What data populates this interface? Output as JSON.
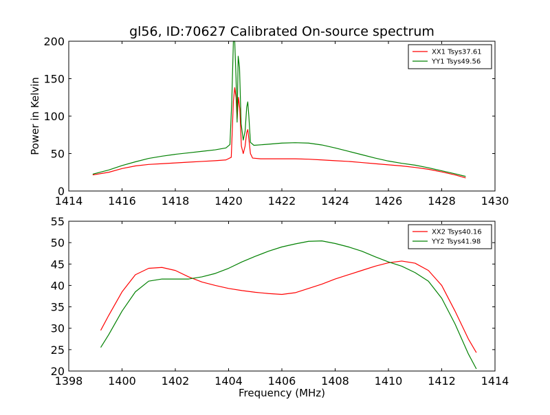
{
  "figure": {
    "title": "gl56, ID:70627 Calibrated On-source spectrum",
    "ylabel": "Power in Kelvin",
    "xlabel": "Frequency (MHz)"
  },
  "colors": {
    "red": "#ff0000",
    "green": "#008000"
  },
  "chart_data": [
    {
      "type": "line",
      "title": "gl56, ID:70627 Calibrated On-source spectrum",
      "xlabel": "",
      "ylabel": "Power in Kelvin",
      "xlim": [
        1414,
        1430
      ],
      "ylim": [
        0,
        200
      ],
      "x_ticks": [
        "1414",
        "1416",
        "1418",
        "1420",
        "1422",
        "1424",
        "1426",
        "1428",
        "1430"
      ],
      "y_ticks": [
        "0",
        "50",
        "100",
        "150",
        "200"
      ],
      "grid": false,
      "legend": "top-right",
      "series": [
        {
          "name": "XX1 Tsys37.61",
          "color": "#ff0000",
          "points": [
            [
              1414.9,
              21.5
            ],
            [
              1415.5,
              25
            ],
            [
              1416,
              30
            ],
            [
              1416.5,
              33.5
            ],
            [
              1417,
              35.5
            ],
            [
              1417.5,
              36.5
            ],
            [
              1418,
              37.5
            ],
            [
              1418.5,
              38.5
            ],
            [
              1419,
              39.5
            ],
            [
              1419.5,
              40.5
            ],
            [
              1419.9,
              41.5
            ],
            [
              1420.1,
              45
            ],
            [
              1420.18,
              120
            ],
            [
              1420.23,
              138
            ],
            [
              1420.28,
              125
            ],
            [
              1420.32,
              96
            ],
            [
              1420.37,
              125
            ],
            [
              1420.42,
              110
            ],
            [
              1420.48,
              60
            ],
            [
              1420.55,
              50
            ],
            [
              1420.62,
              60
            ],
            [
              1420.68,
              78
            ],
            [
              1420.72,
              82
            ],
            [
              1420.76,
              70
            ],
            [
              1420.82,
              50
            ],
            [
              1420.9,
              44
            ],
            [
              1421.2,
              43
            ],
            [
              1422,
              43
            ],
            [
              1422.5,
              43
            ],
            [
              1423,
              42.5
            ],
            [
              1423.5,
              41.5
            ],
            [
              1424,
              40.5
            ],
            [
              1424.5,
              39.5
            ],
            [
              1425,
              38
            ],
            [
              1425.5,
              36.5
            ],
            [
              1426,
              35
            ],
            [
              1426.5,
              33.5
            ],
            [
              1427,
              31.5
            ],
            [
              1427.5,
              29
            ],
            [
              1428,
              25.5
            ],
            [
              1428.5,
              21.5
            ],
            [
              1428.9,
              17.5
            ]
          ]
        },
        {
          "name": "YY1 Tsys49.56",
          "color": "#008000",
          "points": [
            [
              1414.9,
              22.5
            ],
            [
              1415.5,
              28
            ],
            [
              1416,
              34
            ],
            [
              1416.5,
              39
            ],
            [
              1417,
              43.5
            ],
            [
              1417.5,
              46.5
            ],
            [
              1418,
              49
            ],
            [
              1418.5,
              51
            ],
            [
              1419,
              53
            ],
            [
              1419.5,
              55
            ],
            [
              1419.9,
              57.5
            ],
            [
              1420.05,
              62
            ],
            [
              1420.12,
              120
            ],
            [
              1420.18,
              200
            ],
            [
              1420.23,
              200
            ],
            [
              1420.28,
              150
            ],
            [
              1420.32,
              92
            ],
            [
              1420.36,
              180
            ],
            [
              1420.41,
              165
            ],
            [
              1420.47,
              90
            ],
            [
              1420.55,
              68
            ],
            [
              1420.62,
              80
            ],
            [
              1420.68,
              112
            ],
            [
              1420.72,
              119
            ],
            [
              1420.76,
              100
            ],
            [
              1420.82,
              65
            ],
            [
              1420.95,
              61
            ],
            [
              1421.5,
              62.5
            ],
            [
              1422,
              64
            ],
            [
              1422.5,
              64.5
            ],
            [
              1423,
              64
            ],
            [
              1423.5,
              61.5
            ],
            [
              1424,
              57.5
            ],
            [
              1424.5,
              53
            ],
            [
              1425,
              48.5
            ],
            [
              1425.5,
              44
            ],
            [
              1426,
              40
            ],
            [
              1426.5,
              37
            ],
            [
              1427,
              34.5
            ],
            [
              1427.5,
              31
            ],
            [
              1428,
              27
            ],
            [
              1428.5,
              23
            ],
            [
              1428.9,
              19.5
            ]
          ]
        }
      ]
    },
    {
      "type": "line",
      "title": "",
      "xlabel": "Frequency (MHz)",
      "ylabel": "",
      "xlim": [
        1398,
        1414
      ],
      "ylim": [
        20,
        55
      ],
      "x_ticks": [
        "1398",
        "1400",
        "1402",
        "1404",
        "1406",
        "1408",
        "1410",
        "1412",
        "1414"
      ],
      "y_ticks": [
        "20",
        "25",
        "30",
        "35",
        "40",
        "45",
        "50",
        "55"
      ],
      "grid": false,
      "legend": "top-right",
      "series": [
        {
          "name": "XX2 Tsys40.16",
          "color": "#ff0000",
          "points": [
            [
              1399.2,
              29.5
            ],
            [
              1399.5,
              33
            ],
            [
              1400,
              38.5
            ],
            [
              1400.5,
              42.5
            ],
            [
              1401,
              44
            ],
            [
              1401.5,
              44.2
            ],
            [
              1402,
              43.5
            ],
            [
              1402.5,
              42
            ],
            [
              1403,
              40.8
            ],
            [
              1403.5,
              40
            ],
            [
              1404,
              39.3
            ],
            [
              1404.5,
              38.8
            ],
            [
              1405,
              38.4
            ],
            [
              1405.5,
              38.1
            ],
            [
              1406,
              37.9
            ],
            [
              1406.5,
              38.3
            ],
            [
              1407,
              39.3
            ],
            [
              1407.5,
              40.3
            ],
            [
              1408,
              41.5
            ],
            [
              1408.5,
              42.5
            ],
            [
              1409,
              43.5
            ],
            [
              1409.5,
              44.5
            ],
            [
              1410,
              45.3
            ],
            [
              1410.5,
              45.7
            ],
            [
              1411,
              45.2
            ],
            [
              1411.5,
              43.5
            ],
            [
              1412,
              40
            ],
            [
              1412.5,
              34
            ],
            [
              1413,
              27.5
            ],
            [
              1413.3,
              24.3
            ]
          ]
        },
        {
          "name": "YY2 Tsys41.98",
          "color": "#008000",
          "points": [
            [
              1399.2,
              25.5
            ],
            [
              1399.5,
              28.5
            ],
            [
              1400,
              34
            ],
            [
              1400.5,
              38.5
            ],
            [
              1401,
              41
            ],
            [
              1401.5,
              41.5
            ],
            [
              1402,
              41.5
            ],
            [
              1402.5,
              41.5
            ],
            [
              1403,
              42
            ],
            [
              1403.5,
              42.8
            ],
            [
              1404,
              44
            ],
            [
              1404.5,
              45.5
            ],
            [
              1405,
              46.8
            ],
            [
              1405.5,
              48
            ],
            [
              1406,
              49
            ],
            [
              1406.5,
              49.7
            ],
            [
              1407,
              50.3
            ],
            [
              1407.5,
              50.4
            ],
            [
              1408,
              49.8
            ],
            [
              1408.5,
              49
            ],
            [
              1409,
              48
            ],
            [
              1409.5,
              46.7
            ],
            [
              1410,
              45.5
            ],
            [
              1410.5,
              44.5
            ],
            [
              1411,
              43
            ],
            [
              1411.5,
              41
            ],
            [
              1412,
              37
            ],
            [
              1412.5,
              31
            ],
            [
              1413,
              24
            ],
            [
              1413.3,
              20.5
            ]
          ]
        }
      ]
    }
  ]
}
